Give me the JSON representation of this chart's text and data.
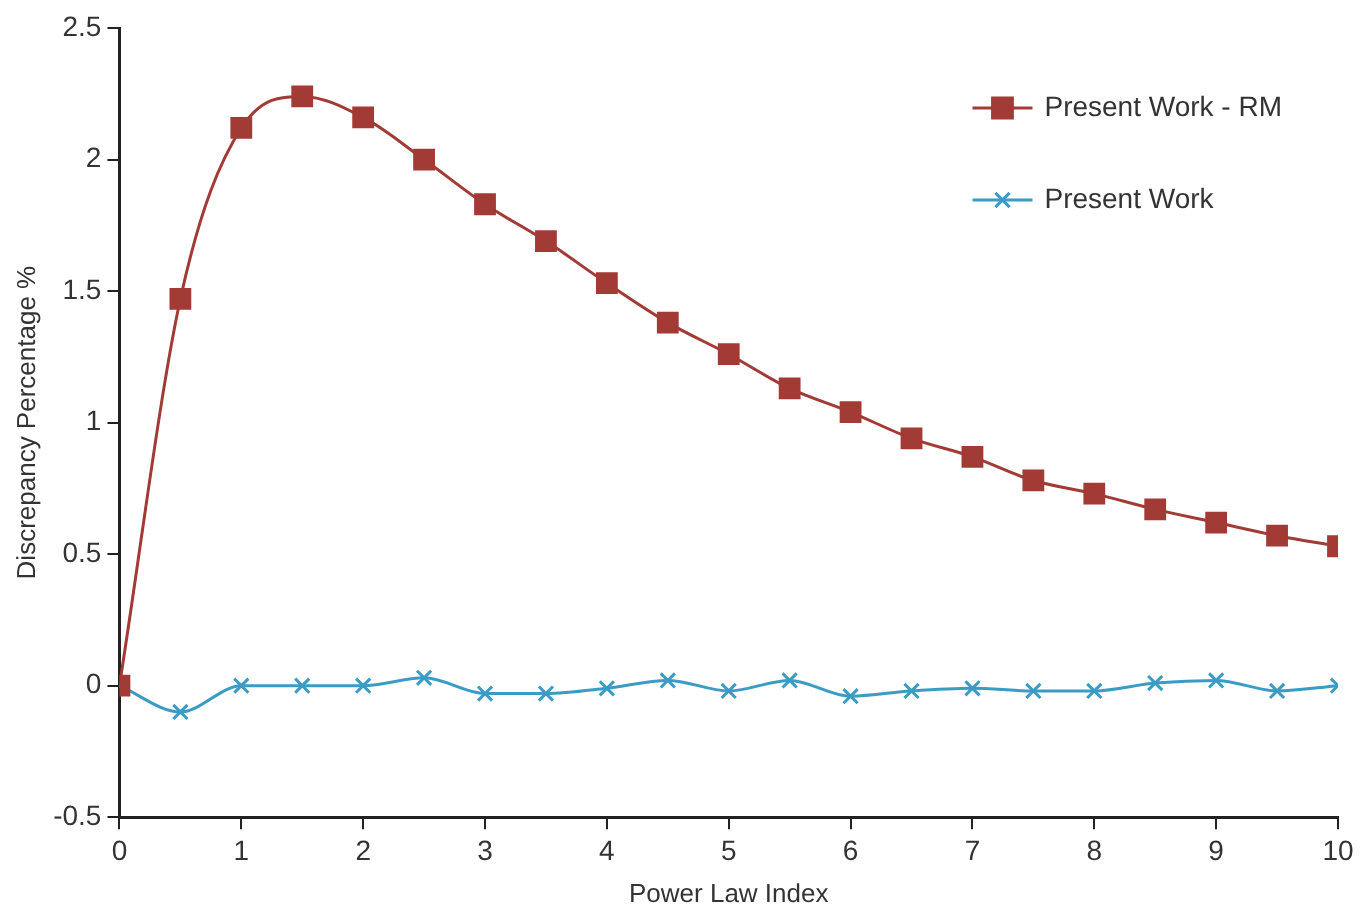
{
  "chart_data": {
    "type": "line",
    "xlabel": "Power Law Index",
    "ylabel": "Discrepancy Percentage %",
    "x": [
      0,
      0.5,
      1,
      1.5,
      2,
      2.5,
      3,
      3.5,
      4,
      4.5,
      5,
      5.5,
      6,
      6.5,
      7,
      7.5,
      8,
      8.5,
      9,
      9.5,
      10
    ],
    "series": [
      {
        "name": "Present Work - RM",
        "color": "#a23a36",
        "marker": "square",
        "values": [
          0,
          1.47,
          2.12,
          2.24,
          2.16,
          2.0,
          1.83,
          1.69,
          1.53,
          1.38,
          1.26,
          1.13,
          1.04,
          0.94,
          0.87,
          0.78,
          0.73,
          0.67,
          0.62,
          0.57,
          0.53
        ]
      },
      {
        "name": "Present Work",
        "color": "#3a9cc4",
        "marker": "cross",
        "values": [
          0,
          -0.1,
          0,
          0,
          0,
          0.03,
          -0.03,
          -0.03,
          -0.01,
          0.02,
          -0.02,
          0.02,
          -0.04,
          -0.02,
          -0.01,
          -0.02,
          -0.02,
          0.01,
          0.02,
          -0.02,
          0
        ]
      }
    ],
    "xlim": [
      0,
      10
    ],
    "xticks": [
      0,
      1,
      2,
      3,
      4,
      5,
      6,
      7,
      8,
      9,
      10
    ],
    "ylim": [
      -0.5,
      2.5
    ],
    "yticks": [
      -0.5,
      0,
      0.5,
      1,
      1.5,
      2,
      2.5
    ],
    "grid": false,
    "legend": "top right"
  }
}
